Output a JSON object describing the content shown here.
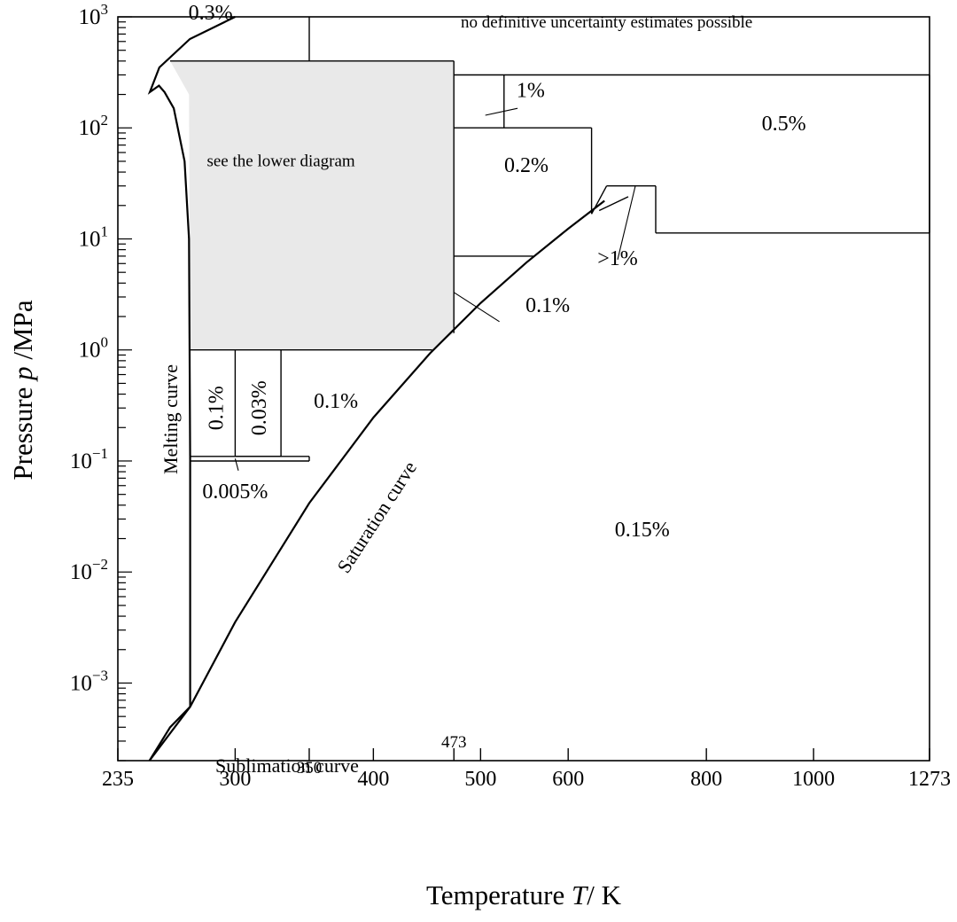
{
  "chart_data": {
    "type": "area",
    "title": "",
    "xlabel_prefix": "Temperature ",
    "xlabel_var": "T",
    "xlabel_unit": "/ K",
    "ylabel_prefix": "Pressure ",
    "ylabel_var": "p",
    "ylabel_unit": " /MPa",
    "x_scale": "log",
    "y_scale": "log",
    "xlim": [
      235,
      1273
    ],
    "ylim": [
      0.0002,
      1000
    ],
    "x_ticks": [
      {
        "value": 235,
        "label": "235"
      },
      {
        "value": 300,
        "label": "300"
      },
      {
        "value": 350,
        "label": "350"
      },
      {
        "value": 400,
        "label": "400"
      },
      {
        "value": 473,
        "label": "473"
      },
      {
        "value": 500,
        "label": "500"
      },
      {
        "value": 600,
        "label": "600"
      },
      {
        "value": 800,
        "label": "800"
      },
      {
        "value": 1000,
        "label": "1000"
      },
      {
        "value": 1273,
        "label": "1273"
      }
    ],
    "y_ticks": [
      {
        "value": 0.001,
        "base": "10",
        "exp": "−3"
      },
      {
        "value": 0.01,
        "base": "10",
        "exp": "−2"
      },
      {
        "value": 0.1,
        "base": "10",
        "exp": "−1"
      },
      {
        "value": 1,
        "base": "10",
        "exp": "0"
      },
      {
        "value": 10,
        "base": "10",
        "exp": "1"
      },
      {
        "value": 100,
        "base": "10",
        "exp": "2"
      },
      {
        "value": 1000,
        "base": "10",
        "exp": "3"
      }
    ],
    "curves": [
      {
        "label": "Saturation curve",
        "points": [
          [
            251,
            0.0002
          ],
          [
            262,
            0.0004
          ],
          [
            273.16,
            0.000612
          ],
          [
            300,
            0.00354
          ],
          [
            350,
            0.0417
          ],
          [
            400,
            0.246
          ],
          [
            450,
            0.932
          ],
          [
            500,
            2.64
          ],
          [
            550,
            6.12
          ],
          [
            600,
            12.34
          ],
          [
            647.1,
            22.06
          ]
        ]
      },
      {
        "label": "Melting curve",
        "points": [
          [
            273.16,
            0.000612
          ],
          [
            273.15,
            0.1
          ],
          [
            272.5,
            10
          ],
          [
            270,
            50
          ],
          [
            264,
            150
          ],
          [
            259,
            210
          ],
          [
            256,
            240
          ],
          [
            251.2,
            209.9
          ],
          [
            256.2,
            350
          ],
          [
            273,
            632
          ],
          [
            300,
            1000
          ]
        ]
      },
      {
        "label": "Sublimation curve",
        "points": [
          [
            251,
            0.0002
          ],
          [
            273.16,
            0.000612
          ]
        ]
      }
    ],
    "regions": [
      {
        "label": "0.3%",
        "T": 285,
        "p": 950
      },
      {
        "label": "no definitive uncertainty estimates possible",
        "T": 650,
        "p": 800
      },
      {
        "label": "1%",
        "T": 555,
        "p": 190
      },
      {
        "label": "0.5%",
        "T": 940,
        "p": 95
      },
      {
        "label": "see the lower diagram",
        "T": 330,
        "p": 45
      },
      {
        "label": "0.2%",
        "T": 550,
        "p": 40
      },
      {
        "label": ">1%",
        "T": 665,
        "p": 5.8
      },
      {
        "label": "0.1%",
        "T": 575,
        "p": 2.2
      },
      {
        "label": "0.1%",
        "T": 370,
        "p": 0.3
      },
      {
        "label": "0.1%",
        "T": 288,
        "p": 0.3
      },
      {
        "label": "0.03%",
        "T": 315,
        "p": 0.3
      },
      {
        "label": "0.005%",
        "T": 300,
        "p": 0.046
      },
      {
        "label": "0.15%",
        "T": 700,
        "p": 0.021
      }
    ],
    "shaded_region": {
      "label": "see the lower diagram",
      "T_range": [
        273.16,
        473
      ],
      "p_range": [
        1,
        400
      ]
    }
  }
}
